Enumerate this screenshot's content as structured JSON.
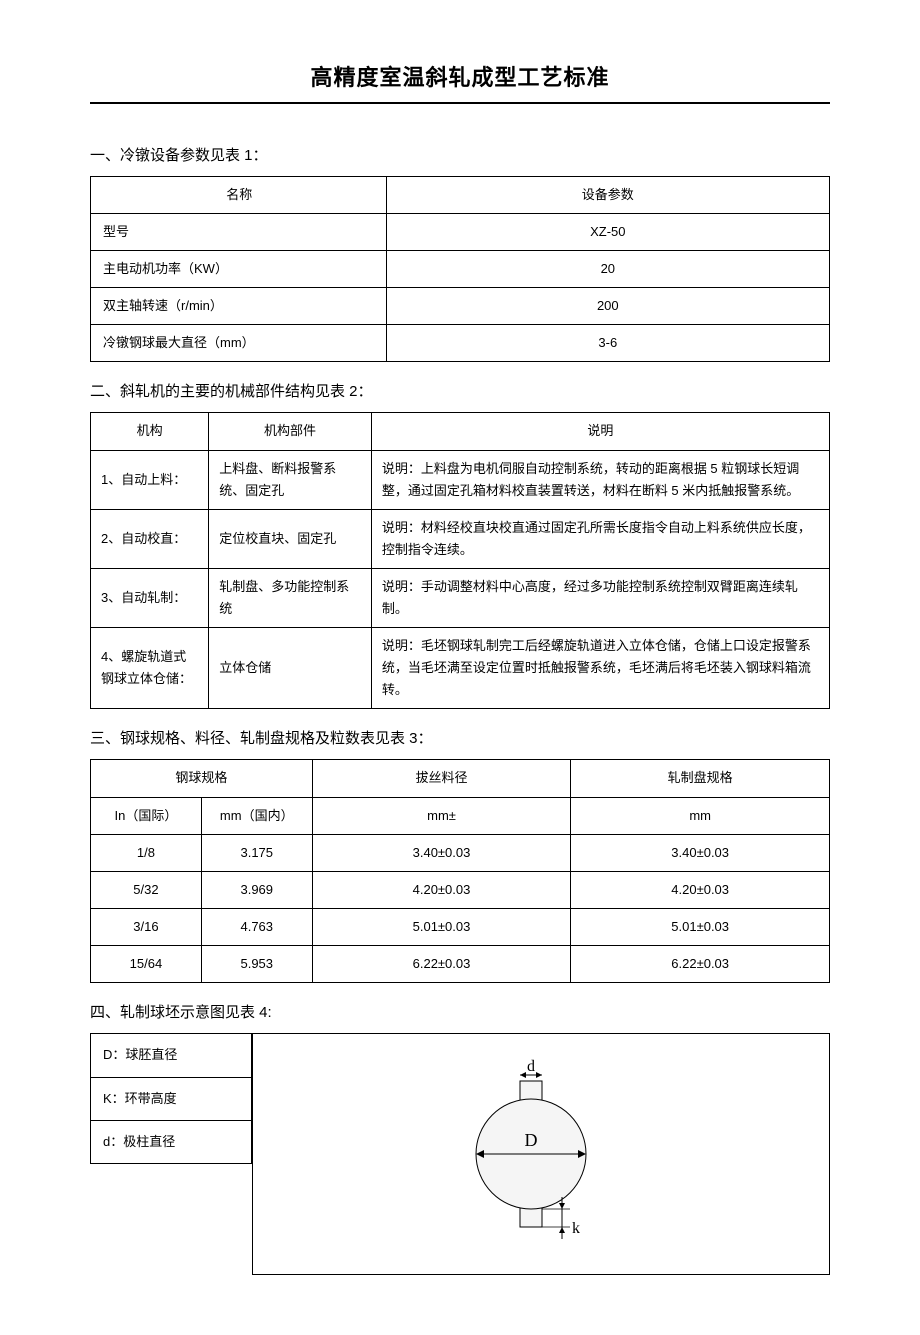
{
  "title": "高精度室温斜轧成型工艺标准",
  "s1": {
    "heading": "一、冷镦设备参数见表 1：",
    "col_name": "名称",
    "col_param": "设备参数",
    "rows": [
      {
        "name": "型号",
        "val": "XZ-50"
      },
      {
        "name": "主电动机功率（KW）",
        "val": "20"
      },
      {
        "name": "双主轴转速（r/min）",
        "val": "200"
      },
      {
        "name": "冷镦钢球最大直径（mm）",
        "val": "3-6"
      }
    ]
  },
  "s2": {
    "heading": "二、斜轧机的主要的机械部件结构见表 2：",
    "col1": "机构",
    "col2": "机构部件",
    "col3": "说明",
    "rows": [
      {
        "c1": "1、自动上料：",
        "c2": "上料盘、断料报警系统、固定孔",
        "c3": "说明：上料盘为电机伺服自动控制系统，转动的距离根据 5 粒钢球长短调整，通过固定孔箱材料校直装置转送，材料在断料 5 米内抵触报警系统。"
      },
      {
        "c1": "2、自动校直：",
        "c2": "定位校直块、固定孔",
        "c3": "说明：材料经校直块校直通过固定孔所需长度指令自动上料系统供应长度，控制指令连续。"
      },
      {
        "c1": "3、自动轧制：",
        "c2": "轧制盘、多功能控制系统",
        "c3": "说明：手动调整材料中心高度，经过多功能控制系统控制双臂距离连续轧制。"
      },
      {
        "c1": "4、螺旋轨道式钢球立体仓储：",
        "c2": "立体仓储",
        "c3": "说明：毛坯钢球轧制完工后经螺旋轨道进入立体仓储，仓储上口设定报警系统，当毛坯满至设定位置时抵触报警系统，毛坯满后将毛坯装入钢球料箱流转。"
      }
    ]
  },
  "s3": {
    "heading": "三、钢球规格、料径、轧制盘规格及粒数表见表 3：",
    "h_spec": "钢球规格",
    "h_in": "In（国际）",
    "h_mm": "mm（国内）",
    "h_wire": "拔丝料径",
    "h_wire_unit": "mm±",
    "h_disk": "轧制盘规格",
    "h_disk_unit": "mm",
    "rows": [
      {
        "in": "1/8",
        "mm": "3.175",
        "wire": "3.40±0.03",
        "disk": "3.40±0.03"
      },
      {
        "in": "5/32",
        "mm": "3.969",
        "wire": "4.20±0.03",
        "disk": "4.20±0.03"
      },
      {
        "in": "3/16",
        "mm": "4.763",
        "wire": "5.01±0.03",
        "disk": "5.01±0.03"
      },
      {
        "in": "15/64",
        "mm": "5.953",
        "wire": "6.22±0.03",
        "disk": "6.22±0.03"
      }
    ]
  },
  "s4": {
    "heading": "四、轧制球坯示意图见表 4:",
    "legend": [
      "D：球胚直径",
      "K：环带高度",
      "d：极柱直径"
    ],
    "labels": {
      "D": "D",
      "d": "d",
      "k": "k"
    },
    "diagram": {
      "circle_fill": "#f5f5f5",
      "stroke": "#000000",
      "stroke_width": 1,
      "ball_r": 55,
      "stub_w": 22,
      "stub_h": 18,
      "font_size": 18
    }
  }
}
